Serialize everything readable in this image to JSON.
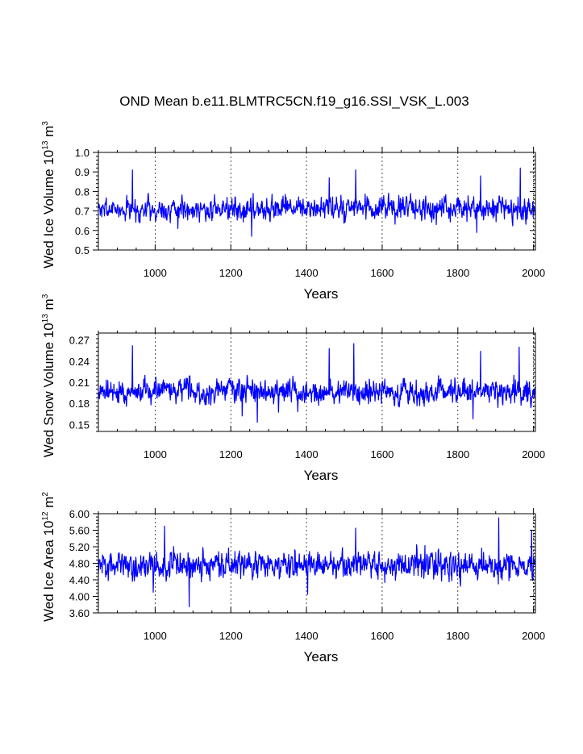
{
  "title": "OND Mean b.e11.BLMTRC5CN.f19_g16.SSI_VSK_L.003",
  "colors": {
    "series": "#0000ff",
    "axis": "#000000",
    "grid": "#000000"
  },
  "chart_data": [
    {
      "type": "line",
      "name": "wed-ice-volume",
      "ylabel": "Wed Ice Volume",
      "ylabel_unit": [
        "10",
        "13",
        " m",
        "3"
      ],
      "xlabel": "Years",
      "xlim": [
        850,
        2005
      ],
      "ylim": [
        0.5,
        1.0
      ],
      "xticks": [
        1000,
        1200,
        1400,
        1600,
        1800,
        2000
      ],
      "yticks": [
        0.5,
        0.6,
        0.7,
        0.8,
        0.9,
        1.0
      ],
      "ytick_labels": [
        "0.5",
        "0.6",
        "0.7",
        "0.8",
        "0.9",
        "1.0"
      ],
      "grid_x": [
        1000,
        1200,
        1400,
        1600,
        1800,
        2000
      ],
      "series": [
        {
          "name": "Wed Ice Volume",
          "start_year": 850,
          "end_year": 2005,
          "mean": 0.71,
          "stdev": 0.045,
          "seed": 7
        }
      ],
      "peaks": [
        [
          940,
          0.91
        ],
        [
          1530,
          0.91
        ],
        [
          1965,
          0.92
        ],
        [
          1460,
          0.87
        ],
        [
          1860,
          0.88
        ]
      ],
      "troughs": [
        [
          1255,
          0.57
        ],
        [
          1060,
          0.61
        ],
        [
          1850,
          0.59
        ]
      ]
    },
    {
      "type": "line",
      "name": "wed-snow-volume",
      "ylabel": "Wed Snow Volume",
      "ylabel_unit": [
        "10",
        "13",
        " m",
        "3"
      ],
      "xlabel": "Years",
      "xlim": [
        850,
        2005
      ],
      "ylim": [
        0.14,
        0.28
      ],
      "xticks": [
        1000,
        1200,
        1400,
        1600,
        1800,
        2000
      ],
      "yticks": [
        0.15,
        0.18,
        0.21,
        0.24,
        0.27
      ],
      "ytick_labels": [
        "0.15",
        "0.18",
        "0.21",
        "0.24",
        "0.27"
      ],
      "grid_x": [
        1000,
        1200,
        1400,
        1600,
        1800,
        2000
      ],
      "series": [
        {
          "name": "Wed Snow Volume",
          "start_year": 850,
          "end_year": 2005,
          "mean": 0.197,
          "stdev": 0.014,
          "seed": 19
        }
      ],
      "peaks": [
        [
          940,
          0.262
        ],
        [
          1525,
          0.265
        ],
        [
          1962,
          0.26
        ],
        [
          1460,
          0.258
        ],
        [
          1860,
          0.254
        ]
      ],
      "troughs": [
        [
          1270,
          0.153
        ],
        [
          1840,
          0.158
        ],
        [
          1230,
          0.162
        ]
      ]
    },
    {
      "type": "line",
      "name": "wed-ice-area",
      "ylabel": "Wed Ice Area",
      "ylabel_unit": [
        "10",
        "12",
        " m",
        "2"
      ],
      "xlabel": "Years",
      "xlim": [
        850,
        2005
      ],
      "ylim": [
        3.6,
        6.0
      ],
      "xticks": [
        1000,
        1200,
        1400,
        1600,
        1800,
        2000
      ],
      "yticks": [
        3.6,
        4.0,
        4.4,
        4.8,
        5.2,
        5.6,
        6.0
      ],
      "ytick_labels": [
        "3.60",
        "4.00",
        "4.40",
        "4.80",
        "5.20",
        "5.60",
        "6.00"
      ],
      "grid_x": [
        1000,
        1200,
        1400,
        1600,
        1800,
        2000
      ],
      "series": [
        {
          "name": "Wed Ice Area",
          "start_year": 850,
          "end_year": 2005,
          "mean": 4.76,
          "stdev": 0.26,
          "seed": 31
        }
      ],
      "peaks": [
        [
          1908,
          5.9
        ],
        [
          1025,
          5.7
        ],
        [
          1530,
          5.65
        ],
        [
          1995,
          5.6
        ]
      ],
      "troughs": [
        [
          1090,
          3.75
        ],
        [
          1403,
          4.05
        ],
        [
          995,
          4.1
        ]
      ]
    }
  ]
}
